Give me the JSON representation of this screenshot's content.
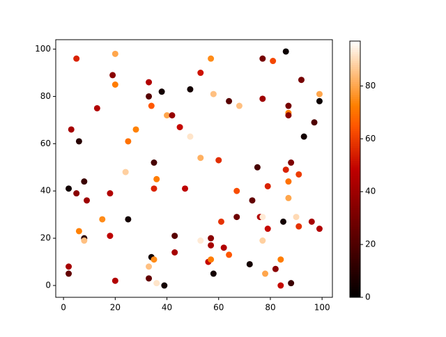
{
  "chart_data": {
    "type": "scatter",
    "x": [
      5,
      20,
      19,
      20,
      13,
      3,
      6,
      8,
      2,
      5,
      9,
      6,
      8,
      8,
      15,
      18,
      18,
      25,
      2,
      2,
      20,
      24,
      25,
      28,
      33,
      33,
      34,
      38,
      40,
      42,
      45,
      49,
      49,
      35,
      36,
      35,
      47,
      43,
      43,
      34,
      35,
      33,
      33,
      36,
      39,
      53,
      57,
      58,
      53,
      60,
      53,
      57,
      57,
      56,
      57,
      58,
      61,
      62,
      64,
      64,
      68,
      67,
      67,
      72,
      73,
      75,
      76,
      77,
      77,
      77,
      77,
      81,
      79,
      79,
      78,
      82,
      84,
      84,
      85,
      86,
      86,
      87,
      87,
      87,
      87,
      87,
      88,
      88,
      90,
      91,
      91,
      92,
      93,
      96,
      97,
      99,
      99,
      99
    ],
    "y": [
      96,
      98,
      89,
      85,
      75,
      66,
      61,
      44,
      41,
      39,
      36,
      23,
      20,
      19,
      28,
      39,
      21,
      28,
      8,
      5,
      2,
      48,
      61,
      66,
      86,
      80,
      76,
      82,
      72,
      72,
      67,
      83,
      63,
      52,
      45,
      41,
      41,
      21,
      14,
      12,
      11,
      8,
      3,
      1,
      0,
      90,
      96,
      81,
      54,
      53,
      19,
      20,
      17,
      10,
      11,
      5,
      27,
      16,
      13,
      78,
      76,
      40,
      29,
      9,
      36,
      50,
      29,
      29,
      19,
      96,
      79,
      95,
      42,
      24,
      5,
      7,
      0,
      11,
      27,
      99,
      49,
      76,
      73,
      72,
      44,
      37,
      52,
      1,
      29,
      47,
      25,
      87,
      63,
      27,
      69,
      81,
      78,
      24
    ],
    "c": [
      55,
      80,
      35,
      72,
      45,
      42,
      10,
      15,
      5,
      35,
      40,
      73,
      12,
      85,
      75,
      45,
      48,
      5,
      42,
      25,
      45,
      88,
      70,
      73,
      45,
      22,
      65,
      5,
      80,
      38,
      50,
      5,
      92,
      18,
      72,
      55,
      48,
      22,
      42,
      5,
      75,
      85,
      25,
      92,
      5,
      52,
      75,
      85,
      82,
      57,
      93,
      35,
      42,
      50,
      72,
      5,
      58,
      45,
      65,
      22,
      85,
      63,
      28,
      5,
      25,
      18,
      45,
      93,
      88,
      30,
      40,
      62,
      55,
      50,
      80,
      35,
      50,
      72,
      5,
      3,
      55,
      30,
      73,
      35,
      70,
      80,
      32,
      15,
      90,
      60,
      58,
      30,
      5,
      42,
      20,
      80,
      3,
      45
    ],
    "colormap": "gist_heat",
    "clim": [
      0,
      97
    ],
    "cticks": [
      0,
      20,
      40,
      60,
      80
    ],
    "xlim": [
      -3,
      104
    ],
    "xticks": [
      0,
      20,
      40,
      60,
      80,
      100
    ],
    "ylim": [
      -5,
      104
    ],
    "yticks": [
      0,
      20,
      40,
      60,
      80,
      100
    ]
  }
}
